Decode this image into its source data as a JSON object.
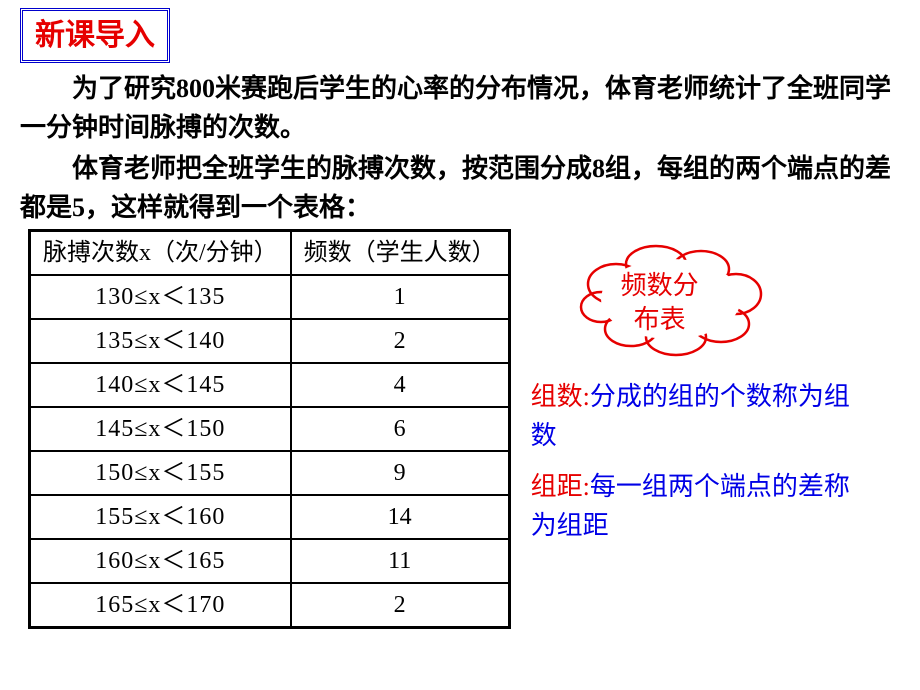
{
  "title": "新课导入",
  "para1": "为了研究800米赛跑后学生的心率的分布情况，体育老师统计了全班同学一分钟时间脉搏的次数。",
  "para2": "体育老师把全班学生的脉搏次数，按范围分成8组，每组的两个端点的差都是5，这样就得到一个表格：",
  "table": {
    "col1": "脉搏次数x（次/分钟）",
    "col2": "频数（学生人数）",
    "rows": [
      {
        "range": "130≤x＜135",
        "freq": "1"
      },
      {
        "range": "135≤x＜140",
        "freq": "2"
      },
      {
        "range": "140≤x＜145",
        "freq": "4"
      },
      {
        "range": "145≤x＜150",
        "freq": "6"
      },
      {
        "range": "150≤x＜155",
        "freq": "9"
      },
      {
        "range": "155≤x＜160",
        "freq": "14"
      },
      {
        "range": "160≤x＜165",
        "freq": "11"
      },
      {
        "range": "165≤x＜170",
        "freq": "2"
      }
    ]
  },
  "cloud": {
    "line1": "频数分",
    "line2": "布表"
  },
  "defn1": {
    "term": "组数:",
    "body": "分成的组的个数称为组数"
  },
  "defn2": {
    "term": "组距:",
    "body": "每一组两个端点的差称为组距"
  },
  "colors": {
    "title_text": "#e60000",
    "title_border": "#0000cc",
    "cloud_stroke": "#e60000",
    "defn_term": "#e60000",
    "defn_body": "#0000e6",
    "table_border": "#000000",
    "background": "#ffffff"
  }
}
